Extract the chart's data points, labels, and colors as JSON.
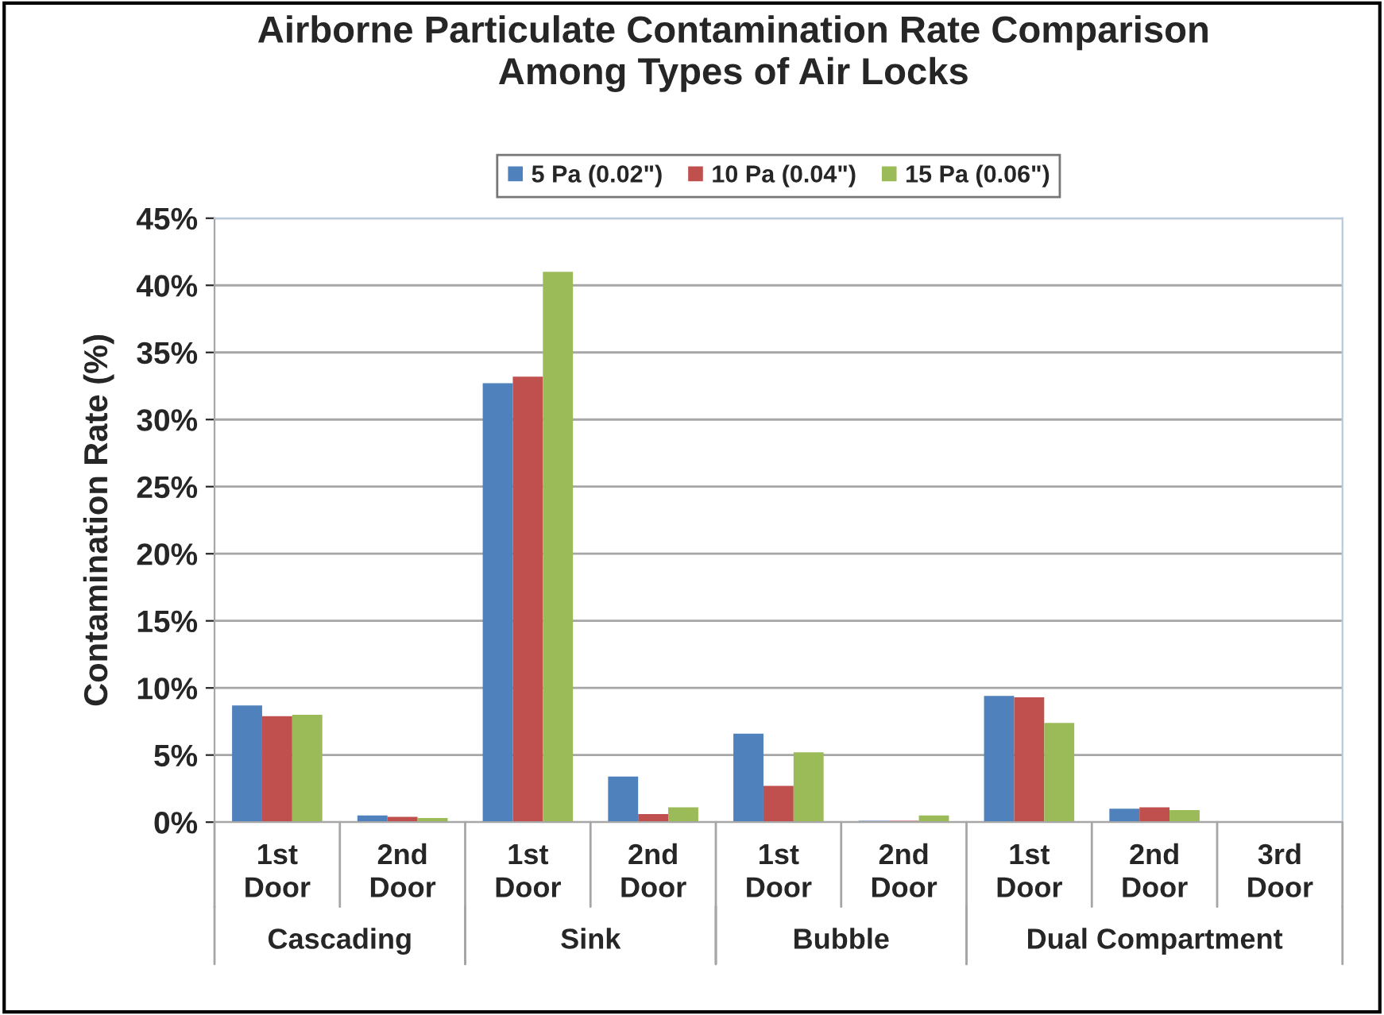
{
  "chart_data": {
    "type": "bar",
    "title": "Airborne Particulate Contamination Rate Comparison\nAmong Types of Air Locks",
    "ylabel": "Contamination Rate (%)",
    "categories": [
      "1st\nDoor",
      "2nd\nDoor",
      "1st\nDoor",
      "2nd\nDoor",
      "1st\nDoor",
      "2nd\nDoor",
      "1st\nDoor",
      "2nd\nDoor",
      "3rd\nDoor"
    ],
    "series": [
      {
        "name": "5 Pa (0.02\")",
        "color": "#4f81bd",
        "values": [
          8.7,
          0.5,
          32.7,
          3.4,
          6.6,
          0.1,
          9.4,
          1.0,
          null
        ]
      },
      {
        "name": "10 Pa (0.04\")",
        "color": "#c0504d",
        "values": [
          7.9,
          0.4,
          33.2,
          0.6,
          2.7,
          0.1,
          9.3,
          1.1,
          null
        ]
      },
      {
        "name": "15 Pa (0.06\")",
        "color": "#9bbb59",
        "values": [
          8.0,
          0.3,
          41.0,
          1.1,
          5.2,
          0.5,
          7.4,
          0.9,
          null
        ]
      }
    ],
    "annotations": [
      "Cascading",
      "Sink",
      "Bubble",
      "Dual Compartment"
    ],
    "ylim": [
      0,
      45
    ],
    "yticks": [
      {
        "value": 0,
        "label": "0%"
      },
      {
        "value": 5,
        "label": "5%"
      },
      {
        "value": 10,
        "label": "10%"
      },
      {
        "value": 15,
        "label": "15%"
      },
      {
        "value": 20,
        "label": "20%"
      },
      {
        "value": 25,
        "label": "25%"
      },
      {
        "value": 30,
        "label": "30%"
      },
      {
        "value": 35,
        "label": "35%"
      },
      {
        "value": 40,
        "label": "40%"
      },
      {
        "value": 45,
        "label": "45%"
      }
    ],
    "grid": "y",
    "legend": "top"
  }
}
